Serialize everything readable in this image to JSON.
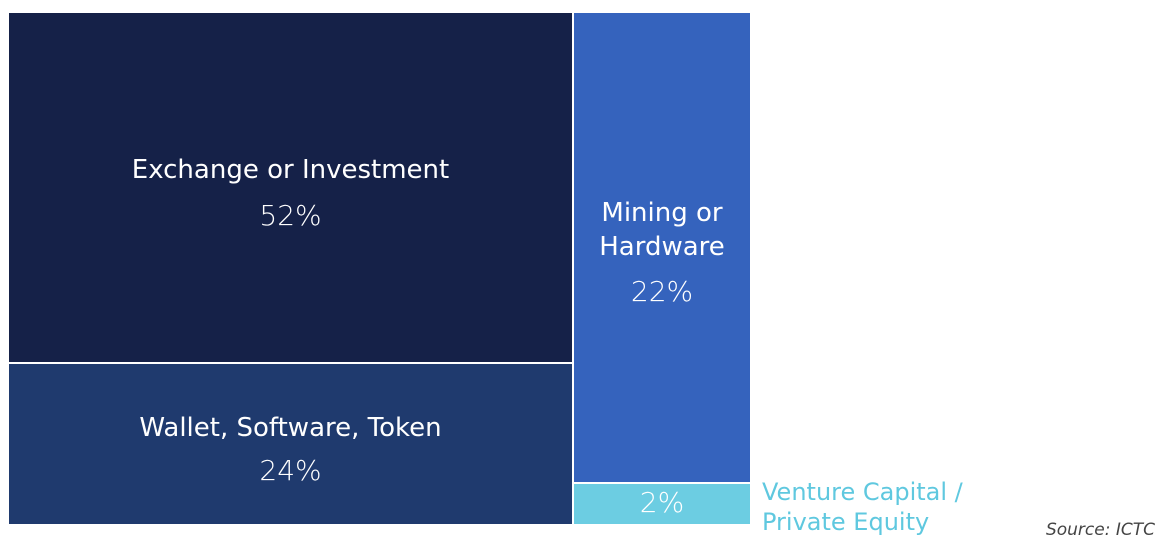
{
  "chart_data": {
    "type": "treemap",
    "title": "",
    "items": [
      {
        "label": "Exchange or Investment",
        "value": 52,
        "display": "52%",
        "color": "#152148"
      },
      {
        "label": "Wallet, Software, Token",
        "value": 24,
        "display": "24%",
        "color": "#1f3a6e"
      },
      {
        "label": "Mining or\nHardware",
        "value": 22,
        "display": "22%",
        "color": "#3563bd"
      },
      {
        "label": "Venture Capital /\nPrivate Equity",
        "value": 2,
        "display": "2%",
        "color": "#6ccde2"
      }
    ]
  },
  "source": "Source: ICTC"
}
